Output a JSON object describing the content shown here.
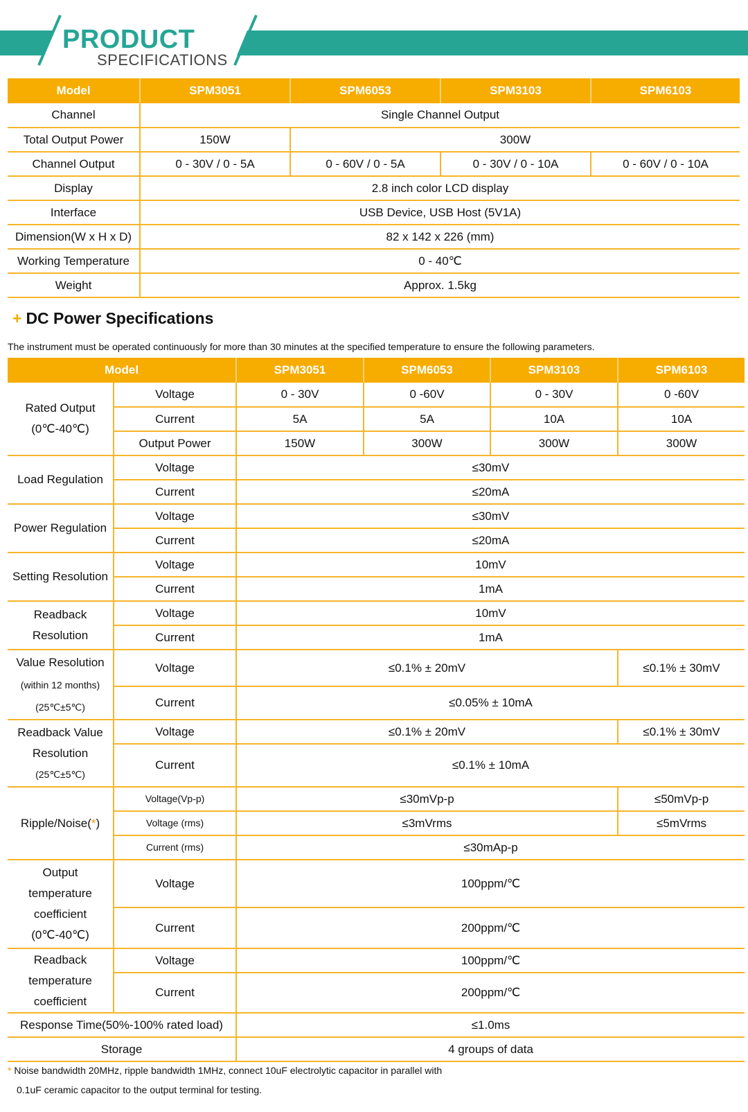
{
  "banner": {
    "title": "PRODUCT",
    "subtitle": "SPECIFICATIONS",
    "color": "#26a595"
  },
  "colors": {
    "header_bg": "#f7ac00",
    "border": "#f6b52a"
  },
  "t1": {
    "header": [
      "Model",
      "SPM3051",
      "SPM6053",
      "SPM3103",
      "SPM6103"
    ],
    "channel": [
      "Channel",
      "Single Channel Output"
    ],
    "power": [
      "Total Output Power",
      "150W",
      "300W"
    ],
    "output": [
      "Channel Output",
      "0 - 30V / 0 - 5A",
      "0 - 60V / 0 - 5A",
      "0 - 30V / 0 - 10A",
      "0 - 60V / 0 - 10A"
    ],
    "display": [
      "Display",
      "2.8 inch color LCD display"
    ],
    "interface": [
      "Interface",
      "USB Device, USB Host (5V1A)"
    ],
    "dimension": [
      "Dimension(W x H x D)",
      "82 x 142 x 226 (mm)"
    ],
    "temp": [
      "Working Temperature",
      "0 - 40℃"
    ],
    "weight": [
      "Weight",
      "Approx. 1.5kg"
    ]
  },
  "section": {
    "icon": "plus-icon",
    "title": "DC Power Specifications",
    "note": "The instrument must be operated continuously for more than 30 minutes at the specified temperature to ensure the following parameters."
  },
  "t2": {
    "header": [
      "Model",
      "SPM3051",
      "SPM6053",
      "SPM3103",
      "SPM6103"
    ],
    "rated": {
      "label": [
        "Rated Output",
        "(0℃-40℃)"
      ],
      "voltage": [
        "Voltage",
        "0 - 30V",
        "0 -60V",
        "0 - 30V",
        "0 -60V"
      ],
      "current": [
        "Current",
        "5A",
        "5A",
        "10A",
        "10A"
      ],
      "power": [
        "Output Power",
        "150W",
        "300W",
        "300W",
        "300W"
      ]
    },
    "load": {
      "label": "Load Regulation",
      "voltage": [
        "Voltage",
        "≤30mV"
      ],
      "current": [
        "Current",
        "≤20mA"
      ]
    },
    "power_reg": {
      "label": "Power Regulation",
      "voltage": [
        "Voltage",
        "≤30mV"
      ],
      "current": [
        "Current",
        "≤20mA"
      ]
    },
    "setting": {
      "label": "Setting Resolution",
      "voltage": [
        "Voltage",
        "10mV"
      ],
      "current": [
        "Current",
        "1mA"
      ]
    },
    "readback": {
      "label": [
        "Readback",
        "Resolution"
      ],
      "voltage": [
        "Voltage",
        "10mV"
      ],
      "current": [
        "Current",
        "1mA"
      ]
    },
    "value_res": {
      "label": [
        "Value Resolution",
        "(within 12 months)",
        "(25℃±5℃)"
      ],
      "voltage": [
        "Voltage",
        "≤0.1%  ±  20mV",
        "≤0.1%  ±  30mV"
      ],
      "current": [
        "Current",
        "≤0.05%  ±  10mA"
      ]
    },
    "rb_value": {
      "label": [
        "Readback Value",
        "Resolution",
        "(25℃±5℃)"
      ],
      "voltage": [
        "Voltage",
        "≤0.1%  ±  20mV",
        "≤0.1%  ±  30mV"
      ],
      "current": [
        "Current",
        "≤0.1%  ±  10mA"
      ]
    },
    "ripple": {
      "label": "Ripple/Noise(",
      "star": "*",
      "close": ")",
      "vpp": [
        "Voltage(Vp-p)",
        "≤30mVp-p",
        "≤50mVp-p"
      ],
      "vrms": [
        "Voltage (rms)",
        "≤3mVrms",
        "≤5mVrms"
      ],
      "crms": [
        "Current (rms)",
        "≤30mAp-p"
      ]
    },
    "out_temp": {
      "label": [
        "Output",
        "temperature",
        "coefficient",
        "(0℃-40℃)"
      ],
      "voltage": [
        "Voltage",
        "100ppm/℃"
      ],
      "current": [
        "Current",
        "200ppm/℃"
      ]
    },
    "rb_temp": {
      "label": [
        "Readback",
        "temperature",
        "coefficient"
      ],
      "voltage": [
        "Voltage",
        "100ppm/℃"
      ],
      "current": [
        "Current",
        "200ppm/℃"
      ]
    },
    "response": [
      "Response Time(50%-100% rated load)",
      "≤1.0ms"
    ],
    "storage": [
      "Storage",
      "4 groups of data"
    ]
  },
  "footnote": {
    "star": "*",
    "line1": " Noise bandwidth 20MHz, ripple bandwidth 1MHz, connect 10uF electrolytic capacitor in parallel with",
    "line2": "0.1uF ceramic capacitor to the output terminal for testing."
  }
}
